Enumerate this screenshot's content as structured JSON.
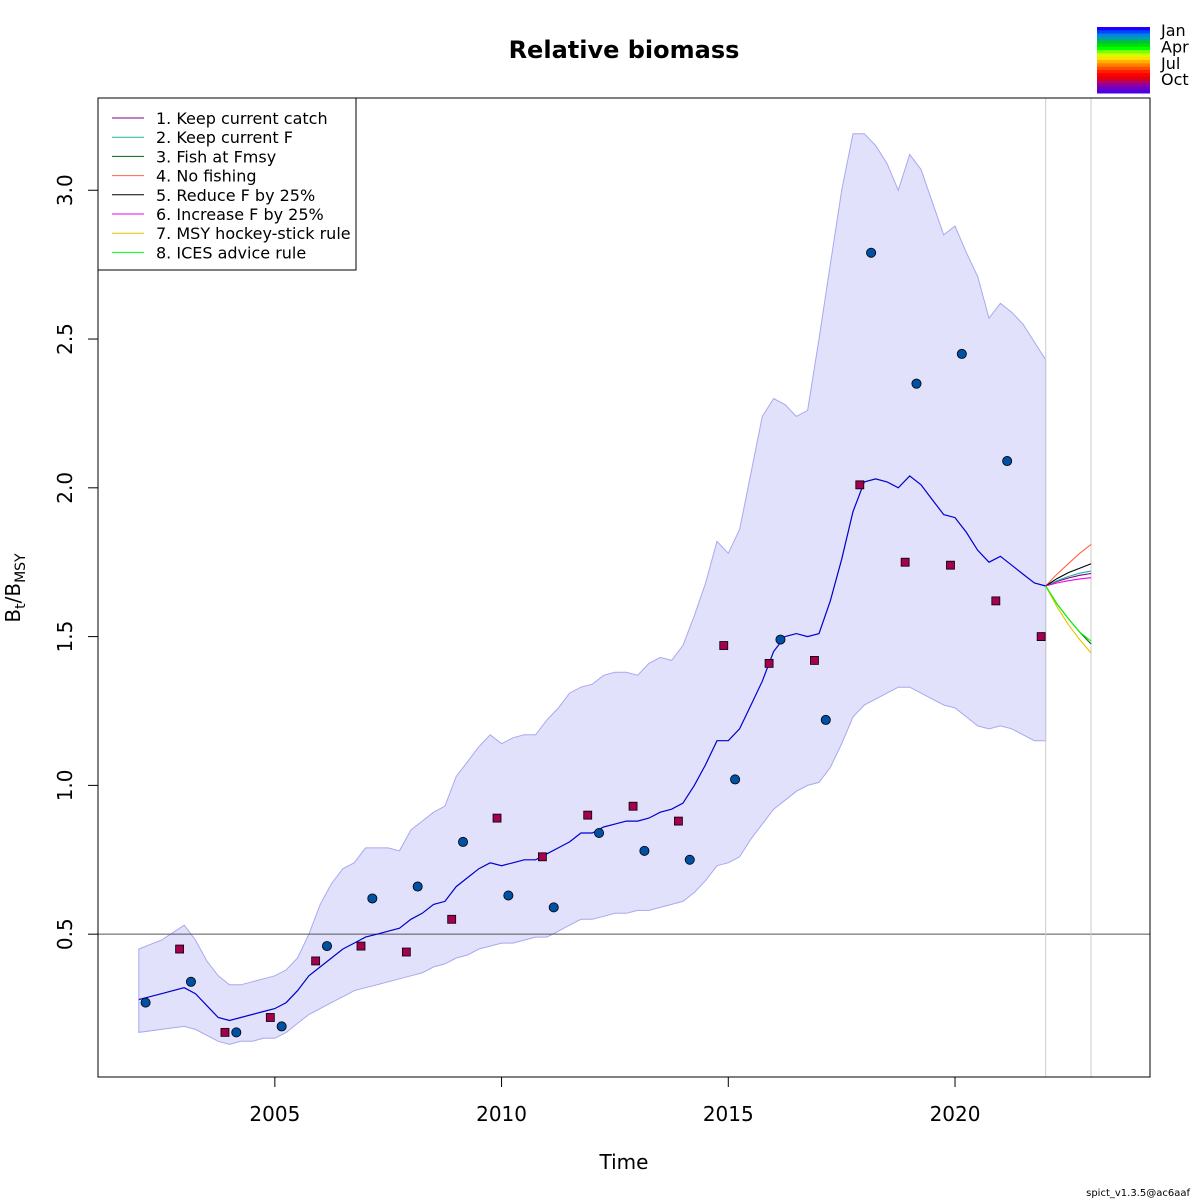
{
  "chart_data": {
    "type": "line",
    "title": "Relative biomass",
    "xlabel": "Time",
    "ylabel_main": "B",
    "ylabel_sub1": "t",
    "ylabel_slash": "/",
    "ylabel_main2": "B",
    "ylabel_sub2": "MSY",
    "footer": "spict_v1.3.5@ac6aaf",
    "xlim": [
      2001.1,
      2024.3
    ],
    "ylim": [
      0.02,
      3.31
    ],
    "x_ticks": [
      2005,
      2010,
      2015,
      2020
    ],
    "x_tick_labels": [
      "2005",
      "2010",
      "2015",
      "2020"
    ],
    "y_ticks": [
      0.5,
      1.0,
      1.5,
      2.0,
      2.5,
      3.0
    ],
    "y_tick_labels": [
      "0.5",
      "1.0",
      "1.5",
      "2.0",
      "2.5",
      "3.0"
    ],
    "reference_line_y": 0.5,
    "vertical_lines_x": [
      2022.0,
      2023.0
    ],
    "colors": {
      "ci_fill": "#e1e1fc",
      "ci_border": "#a8a8ef",
      "estimate_line": "#0000cc",
      "square_points": "#a3004f",
      "circle_points": "#0050a4",
      "ref_line": "#555555",
      "vline": "#cccccc"
    },
    "estimate": {
      "x": [
        2002.0,
        2002.5,
        2003.0,
        2003.25,
        2003.5,
        2003.75,
        2004.0,
        2004.25,
        2004.5,
        2004.75,
        2005.0,
        2005.25,
        2005.5,
        2005.75,
        2006.0,
        2006.25,
        2006.5,
        2006.75,
        2007.0,
        2007.25,
        2007.5,
        2007.75,
        2008.0,
        2008.25,
        2008.5,
        2008.75,
        2009.0,
        2009.25,
        2009.5,
        2009.75,
        2010.0,
        2010.25,
        2010.5,
        2010.75,
        2011.0,
        2011.25,
        2011.5,
        2011.75,
        2012.0,
        2012.25,
        2012.5,
        2012.75,
        2013.0,
        2013.25,
        2013.5,
        2013.75,
        2014.0,
        2014.25,
        2014.5,
        2014.75,
        2015.0,
        2015.25,
        2015.5,
        2015.75,
        2016.0,
        2016.25,
        2016.5,
        2016.75,
        2017.0,
        2017.25,
        2017.5,
        2017.75,
        2018.0,
        2018.25,
        2018.5,
        2018.75,
        2019.0,
        2019.25,
        2019.5,
        2019.75,
        2020.0,
        2020.25,
        2020.5,
        2020.75,
        2021.0,
        2021.25,
        2021.5,
        2021.75,
        2022.0
      ],
      "y": [
        0.28,
        0.3,
        0.32,
        0.3,
        0.26,
        0.22,
        0.21,
        0.22,
        0.23,
        0.24,
        0.25,
        0.27,
        0.31,
        0.36,
        0.39,
        0.42,
        0.45,
        0.47,
        0.49,
        0.5,
        0.51,
        0.52,
        0.55,
        0.57,
        0.6,
        0.61,
        0.66,
        0.69,
        0.72,
        0.74,
        0.73,
        0.74,
        0.75,
        0.75,
        0.77,
        0.79,
        0.81,
        0.84,
        0.84,
        0.86,
        0.87,
        0.88,
        0.88,
        0.89,
        0.91,
        0.92,
        0.94,
        1.0,
        1.07,
        1.15,
        1.15,
        1.19,
        1.27,
        1.35,
        1.45,
        1.5,
        1.51,
        1.5,
        1.51,
        1.62,
        1.76,
        1.92,
        2.02,
        2.03,
        2.02,
        2.0,
        2.04,
        2.01,
        1.96,
        1.91,
        1.9,
        1.85,
        1.79,
        1.75,
        1.77,
        1.74,
        1.71,
        1.68,
        1.67
      ]
    },
    "ci_upper": [
      0.45,
      0.48,
      0.53,
      0.48,
      0.41,
      0.36,
      0.33,
      0.33,
      0.34,
      0.35,
      0.36,
      0.38,
      0.42,
      0.5,
      0.6,
      0.67,
      0.72,
      0.74,
      0.79,
      0.79,
      0.79,
      0.78,
      0.85,
      0.88,
      0.91,
      0.93,
      1.03,
      1.08,
      1.13,
      1.17,
      1.14,
      1.16,
      1.17,
      1.17,
      1.22,
      1.26,
      1.31,
      1.33,
      1.34,
      1.37,
      1.38,
      1.38,
      1.37,
      1.41,
      1.43,
      1.42,
      1.47,
      1.57,
      1.68,
      1.82,
      1.78,
      1.86,
      2.05,
      2.24,
      2.3,
      2.28,
      2.24,
      2.26,
      2.5,
      2.75,
      3.0,
      3.19,
      3.19,
      3.15,
      3.09,
      3.0,
      3.12,
      3.07,
      2.96,
      2.85,
      2.88,
      2.79,
      2.71,
      2.57,
      2.62,
      2.59,
      2.55,
      2.49,
      2.43
    ],
    "ci_lower": [
      0.17,
      0.18,
      0.19,
      0.18,
      0.16,
      0.14,
      0.13,
      0.14,
      0.14,
      0.15,
      0.15,
      0.17,
      0.2,
      0.23,
      0.25,
      0.27,
      0.29,
      0.31,
      0.32,
      0.33,
      0.34,
      0.35,
      0.36,
      0.37,
      0.39,
      0.4,
      0.42,
      0.43,
      0.45,
      0.46,
      0.47,
      0.47,
      0.48,
      0.49,
      0.49,
      0.51,
      0.53,
      0.55,
      0.55,
      0.56,
      0.57,
      0.57,
      0.58,
      0.58,
      0.59,
      0.6,
      0.61,
      0.64,
      0.68,
      0.73,
      0.74,
      0.76,
      0.82,
      0.87,
      0.92,
      0.95,
      0.98,
      1.0,
      1.01,
      1.06,
      1.14,
      1.23,
      1.27,
      1.29,
      1.31,
      1.33,
      1.33,
      1.31,
      1.29,
      1.27,
      1.26,
      1.23,
      1.2,
      1.19,
      1.2,
      1.19,
      1.17,
      1.15,
      1.15
    ],
    "squares": {
      "x": [
        2002.9,
        2003.9,
        2004.9,
        2005.9,
        2006.9,
        2007.9,
        2008.9,
        2009.9,
        2010.9,
        2011.9,
        2012.9,
        2013.9,
        2014.9,
        2015.9,
        2016.9,
        2017.9,
        2018.9,
        2019.9,
        2020.9,
        2021.9
      ],
      "y": [
        0.45,
        0.17,
        0.22,
        0.41,
        0.46,
        0.44,
        0.55,
        0.89,
        0.76,
        0.9,
        0.93,
        0.88,
        1.47,
        1.41,
        1.42,
        2.01,
        1.75,
        1.74,
        1.62,
        1.5
      ]
    },
    "circles": {
      "x": [
        2002.15,
        2003.15,
        2004.15,
        2005.15,
        2006.15,
        2007.15,
        2008.15,
        2009.15,
        2010.15,
        2011.15,
        2012.15,
        2013.15,
        2014.15,
        2015.15,
        2016.15,
        2017.15,
        2018.15,
        2019.15,
        2020.15,
        2021.15
      ],
      "y": [
        0.27,
        0.34,
        0.17,
        0.19,
        0.46,
        0.62,
        0.66,
        0.81,
        0.63,
        0.59,
        0.84,
        0.78,
        0.75,
        1.02,
        1.49,
        1.22,
        2.79,
        2.35,
        2.45,
        2.09
      ]
    },
    "forecast_x": [
      2022.0,
      2022.25,
      2022.5,
      2022.75,
      2023.0
    ],
    "series": [
      {
        "name": "1. Keep current catch",
        "color": "#7f007f",
        "values": [
          1.67,
          1.685,
          1.697,
          1.706,
          1.712
        ]
      },
      {
        "name": "2. Keep current F",
        "color": "#20b2aa",
        "values": [
          1.67,
          1.688,
          1.702,
          1.713,
          1.72
        ]
      },
      {
        "name": "3. Fish at Fmsy",
        "color": "#006400",
        "values": [
          1.67,
          1.61,
          1.56,
          1.515,
          1.475
        ]
      },
      {
        "name": "4. No fishing",
        "color": "#ff6347",
        "values": [
          1.67,
          1.71,
          1.745,
          1.78,
          1.81
        ]
      },
      {
        "name": "5. Reduce F by 25%",
        "color": "#000000",
        "values": [
          1.67,
          1.695,
          1.715,
          1.73,
          1.745
        ]
      },
      {
        "name": "6. Increase F by 25%",
        "color": "#ee00ee",
        "values": [
          1.67,
          1.68,
          1.688,
          1.694,
          1.698
        ]
      },
      {
        "name": "7. MSY hockey-stick rule",
        "color": "#e5c400",
        "values": [
          1.67,
          1.6,
          1.54,
          1.49,
          1.445
        ]
      },
      {
        "name": "8. ICES advice rule",
        "color": "#00ff00",
        "values": [
          1.67,
          1.61,
          1.56,
          1.515,
          1.485
        ]
      }
    ],
    "season_colorbar": {
      "labels": [
        "Jan",
        "Apr",
        "Jul",
        "Oct"
      ],
      "colors": [
        "#1f00ff",
        "#0048ff",
        "#0088e0",
        "#00a0a0",
        "#00c040",
        "#00e000",
        "#00ff00",
        "#80ff00",
        "#d0ff00",
        "#ffe000",
        "#ffb000",
        "#ff8000",
        "#ff5000",
        "#ff2000",
        "#ff0000",
        "#e00010",
        "#c00050",
        "#9000a0",
        "#7000c0",
        "#5000e0"
      ]
    }
  }
}
